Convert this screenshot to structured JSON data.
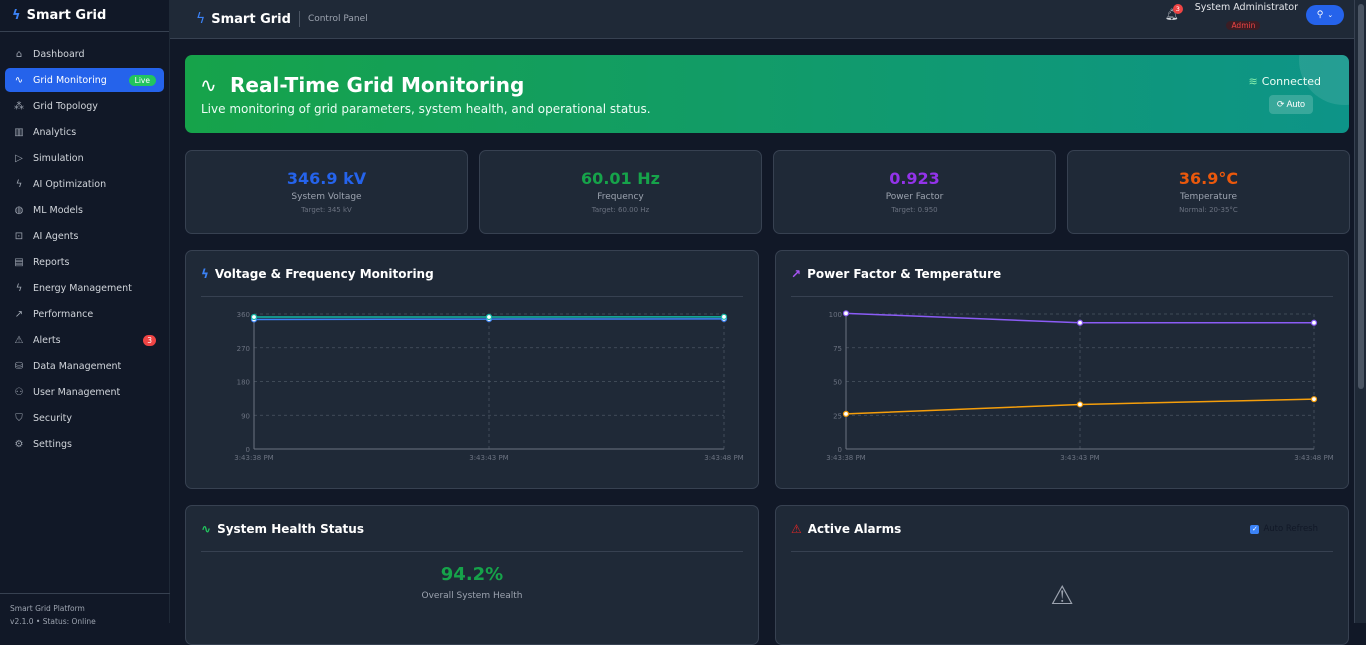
{
  "app": {
    "name": "Smart Grid",
    "section": "Control Panel"
  },
  "sidebar": {
    "items": [
      {
        "label": "Dashboard",
        "icon": "home-icon",
        "glyph": "⌂"
      },
      {
        "label": "Grid Monitoring",
        "icon": "activity-icon",
        "glyph": "∿",
        "badge": "Live",
        "active": true
      },
      {
        "label": "Grid Topology",
        "icon": "network-icon",
        "glyph": "⁂"
      },
      {
        "label": "Analytics",
        "icon": "bar-chart-icon",
        "glyph": "▥"
      },
      {
        "label": "Simulation",
        "icon": "play-icon",
        "glyph": "▷"
      },
      {
        "label": "AI Optimization",
        "icon": "zap-icon",
        "glyph": "ϟ"
      },
      {
        "label": "ML Models",
        "icon": "brain-icon",
        "glyph": "◍"
      },
      {
        "label": "AI Agents",
        "icon": "bot-icon",
        "glyph": "⊡"
      },
      {
        "label": "Reports",
        "icon": "file-icon",
        "glyph": "▤"
      },
      {
        "label": "Energy Management",
        "icon": "zap-icon",
        "glyph": "ϟ"
      },
      {
        "label": "Performance",
        "icon": "trending-up-icon",
        "glyph": "↗"
      },
      {
        "label": "Alerts",
        "icon": "alert-triangle-icon",
        "glyph": "⚠",
        "badge": "3"
      },
      {
        "label": "Data Management",
        "icon": "database-icon",
        "glyph": "⛁"
      },
      {
        "label": "User Management",
        "icon": "users-icon",
        "glyph": "⚇"
      },
      {
        "label": "Security",
        "icon": "shield-icon",
        "glyph": "⛉"
      },
      {
        "label": "Settings",
        "icon": "gear-icon",
        "glyph": "⚙"
      }
    ],
    "footer": {
      "line1": "Smart Grid Platform",
      "line2": "v2.1.0 • Status: Online"
    }
  },
  "header": {
    "notifications": "3",
    "user_name": "System Administrator",
    "user_role": "Admin"
  },
  "hero": {
    "title": "Real-Time Grid Monitoring",
    "subtitle": "Live monitoring of grid parameters, system health, and operational status.",
    "status": "Connected",
    "auto_label": "Auto"
  },
  "stats": [
    {
      "value": "346.9 kV",
      "label": "System Voltage",
      "sub": "Target: 345 kV",
      "color": "#2563eb"
    },
    {
      "value": "60.01 Hz",
      "label": "Frequency",
      "sub": "Target: 60.00 Hz",
      "color": "#16a34a"
    },
    {
      "value": "0.923",
      "label": "Power Factor",
      "sub": "Target: 0.950",
      "color": "#9333ea"
    },
    {
      "value": "36.9°C",
      "label": "Temperature",
      "sub": "Normal: 20-35°C",
      "color": "#ea580c"
    }
  ],
  "cards": {
    "voltage": "Voltage & Frequency Monitoring",
    "pf": "Power Factor & Temperature",
    "health": "System Health Status",
    "alarms": "Active Alarms",
    "auto_refresh": "Auto Refresh",
    "health_value": "94.2%",
    "health_label": "Overall System Health"
  },
  "chart_data": [
    {
      "type": "line",
      "x": [
        "3:43:38 PM",
        "3:43:43 PM",
        "3:43:48 PM"
      ],
      "ylim": [
        0,
        360
      ],
      "yticks": [
        0,
        90,
        180,
        270,
        360
      ],
      "grid": true,
      "series": [
        {
          "values": [
            345.5,
            346.5,
            346.9
          ],
          "color": "#3b82f6"
        },
        {
          "values": [
            352,
            352,
            352.5
          ],
          "color": "#14b8a6"
        }
      ]
    },
    {
      "type": "line",
      "x": [
        "3:43:38 PM",
        "3:43:43 PM",
        "3:43:48 PM"
      ],
      "ylim": [
        0,
        100
      ],
      "yticks": [
        0,
        25,
        50,
        75,
        100
      ],
      "grid": true,
      "series": [
        {
          "values": [
            100.5,
            93.5,
            93.5
          ],
          "color": "#8b5cf6"
        },
        {
          "values": [
            26,
            33,
            36.9
          ],
          "color": "#f59e0b"
        }
      ]
    }
  ]
}
